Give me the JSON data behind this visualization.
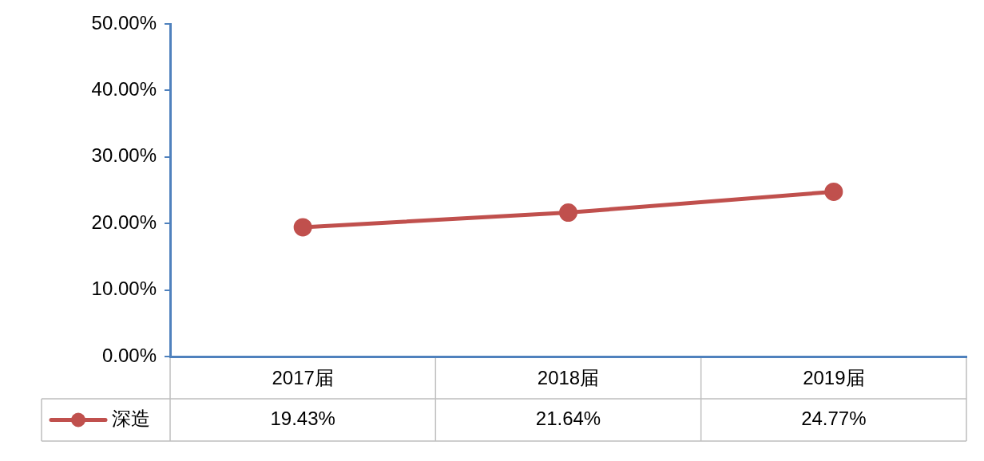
{
  "chart_data": {
    "type": "line",
    "categories": [
      "2017届",
      "2018届",
      "2019届"
    ],
    "series": [
      {
        "name": "深造",
        "color": "#c0504d",
        "values": [
          19.43,
          21.64,
          24.77
        ],
        "value_labels": [
          "19.43%",
          "21.64%",
          "24.77%"
        ]
      }
    ],
    "ylim": [
      0,
      50
    ],
    "yticks": [
      {
        "value": 0,
        "label": "0.00%"
      },
      {
        "value": 10,
        "label": "10.00%"
      },
      {
        "value": 20,
        "label": "20.00%"
      },
      {
        "value": 30,
        "label": "30.00%"
      },
      {
        "value": 40,
        "label": "40.00%"
      },
      {
        "value": 50,
        "label": "50.00%"
      }
    ],
    "grid": false,
    "legend": "bottom",
    "marker": "circle",
    "line_style": "solid"
  }
}
